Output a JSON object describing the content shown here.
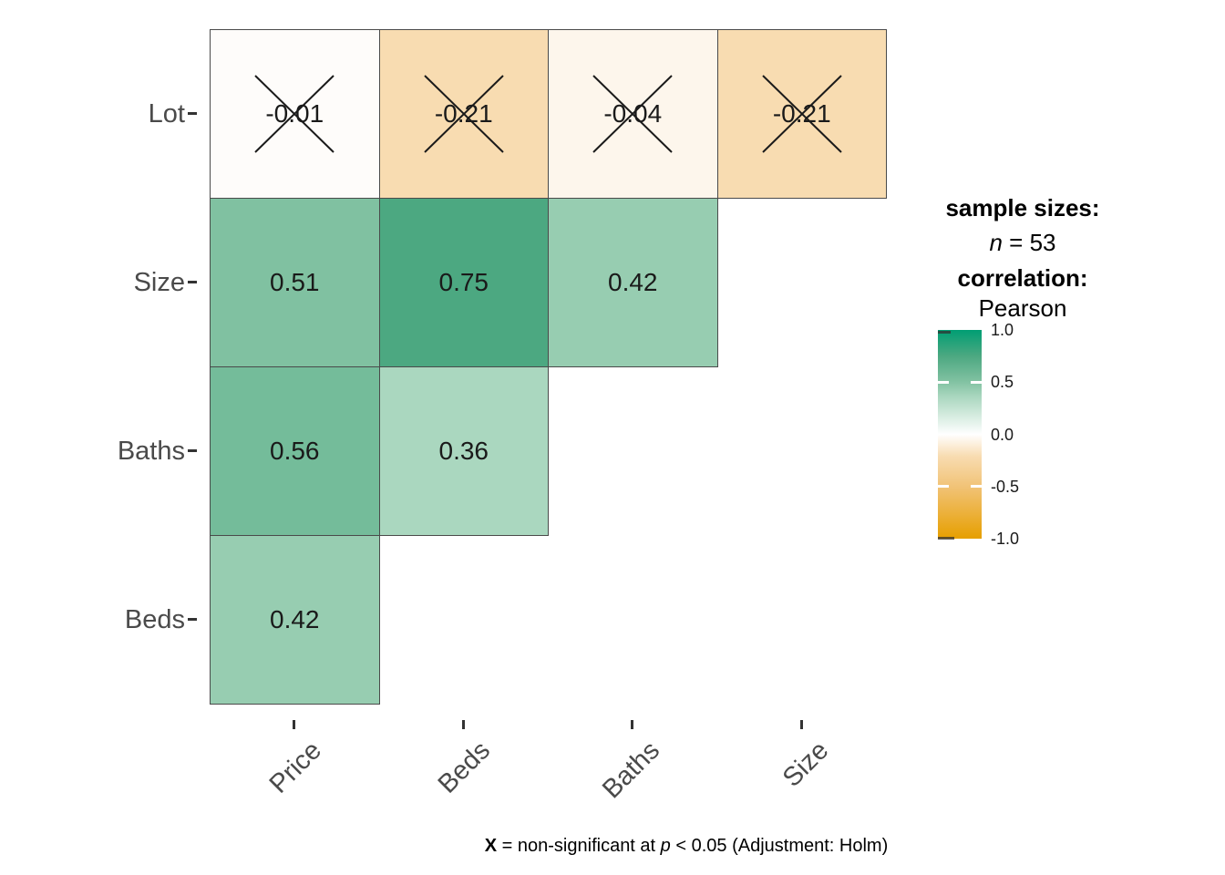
{
  "figure": {
    "background": "#ffffff",
    "caption": {
      "bold_x": "X",
      "mid": " = non-significant at ",
      "p_italic": "p",
      "end": " < 0.05 (Adjustment: Holm)"
    },
    "legend": {
      "sample_sizes_title": "sample sizes:",
      "n_italic": "n",
      "n_rest": " = 53",
      "correlation_title": "correlation:",
      "method": "Pearson"
    }
  },
  "chart_data": {
    "type": "heatmap",
    "subtype": "correlation-matrix",
    "title": "",
    "x_categories": [
      "Price",
      "Beds",
      "Baths",
      "Size"
    ],
    "y_categories": [
      "Lot",
      "Size",
      "Baths",
      "Beds"
    ],
    "matrix": [
      [
        -0.01,
        -0.21,
        -0.04,
        -0.21
      ],
      [
        0.51,
        0.75,
        0.42,
        null
      ],
      [
        0.56,
        0.36,
        null,
        null
      ],
      [
        0.42,
        null,
        null,
        null
      ]
    ],
    "cells": [
      {
        "row": 0,
        "col": 0,
        "y": "Lot",
        "x": "Price",
        "value": -0.01,
        "display": "-0.01",
        "significant": false,
        "color": "#fefcfa"
      },
      {
        "row": 0,
        "col": 1,
        "y": "Lot",
        "x": "Beds",
        "value": -0.21,
        "display": "-0.21",
        "significant": false,
        "color": "#f8dcb1"
      },
      {
        "row": 0,
        "col": 2,
        "y": "Lot",
        "x": "Baths",
        "value": -0.04,
        "display": "-0.04",
        "significant": false,
        "color": "#fdf6ec"
      },
      {
        "row": 0,
        "col": 3,
        "y": "Lot",
        "x": "Size",
        "value": -0.21,
        "display": "-0.21",
        "significant": false,
        "color": "#f8dcb1"
      },
      {
        "row": 1,
        "col": 0,
        "y": "Size",
        "x": "Price",
        "value": 0.51,
        "display": "0.51",
        "significant": true,
        "color": "#80c1a1"
      },
      {
        "row": 1,
        "col": 1,
        "y": "Size",
        "x": "Beds",
        "value": 0.75,
        "display": "0.75",
        "significant": true,
        "color": "#4ca881"
      },
      {
        "row": 1,
        "col": 2,
        "y": "Size",
        "x": "Baths",
        "value": 0.42,
        "display": "0.42",
        "significant": true,
        "color": "#97cdb1"
      },
      {
        "row": 2,
        "col": 0,
        "y": "Baths",
        "x": "Price",
        "value": 0.56,
        "display": "0.56",
        "significant": true,
        "color": "#74bc9a"
      },
      {
        "row": 2,
        "col": 1,
        "y": "Baths",
        "x": "Beds",
        "value": 0.36,
        "display": "0.36",
        "significant": true,
        "color": "#aad7bf"
      },
      {
        "row": 3,
        "col": 0,
        "y": "Beds",
        "x": "Price",
        "value": 0.42,
        "display": "0.42",
        "significant": true,
        "color": "#97cdb1"
      }
    ],
    "sample_size": 53,
    "correlation_method": "Pearson",
    "nonsignificant_marker": "X",
    "caption_text": "X = non-significant at p < 0.05 (Adjustment: Holm)",
    "colorbar": {
      "ticks": [
        "1.0",
        "0.5",
        "0.0",
        "-0.5",
        "-1.0"
      ],
      "range": [
        -1.0,
        1.0
      ],
      "high_color": "#009E73",
      "mid_color": "#FFFFFF",
      "low_color": "#E69F00"
    },
    "legend_position": "right",
    "grid": false
  }
}
